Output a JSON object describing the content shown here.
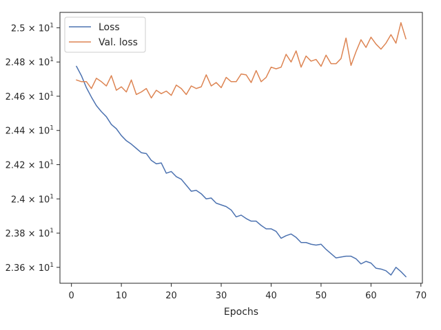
{
  "chart_data": {
    "type": "line",
    "title": "",
    "xlabel": "Epochs",
    "ylabel": "",
    "xlim": [
      -2.3,
      70.3
    ],
    "ylim": [
      23.507,
      25.09
    ],
    "xticks": [
      0,
      10,
      20,
      30,
      40,
      50,
      60,
      70
    ],
    "yticks": [
      {
        "value": 23.6,
        "mantissa": "2.36",
        "exp": "1"
      },
      {
        "value": 23.8,
        "mantissa": "2.38",
        "exp": "1"
      },
      {
        "value": 24.0,
        "mantissa": "2.4",
        "exp": "1"
      },
      {
        "value": 24.2,
        "mantissa": "2.42",
        "exp": "1"
      },
      {
        "value": 24.4,
        "mantissa": "2.44",
        "exp": "1"
      },
      {
        "value": 24.6,
        "mantissa": "2.46",
        "exp": "1"
      },
      {
        "value": 24.8,
        "mantissa": "2.48",
        "exp": "1"
      },
      {
        "value": 25.0,
        "mantissa": "2.5",
        "exp": "1"
      }
    ],
    "grid": false,
    "legend_position": "top-left",
    "series": [
      {
        "name": "Loss",
        "color": "#4c72b0",
        "x": [
          1,
          2,
          3,
          4,
          5,
          6,
          7,
          8,
          9,
          10,
          11,
          12,
          13,
          14,
          15,
          16,
          17,
          18,
          19,
          20,
          21,
          22,
          23,
          24,
          25,
          26,
          27,
          28,
          29,
          30,
          31,
          32,
          33,
          34,
          35,
          36,
          37,
          38,
          39,
          40,
          41,
          42,
          43,
          44,
          45,
          46,
          47,
          48,
          49,
          50,
          51,
          52,
          53,
          54,
          55,
          56,
          57,
          58,
          59,
          60,
          61,
          62,
          63,
          64,
          65,
          66,
          67
        ],
        "values": [
          24.775,
          24.72,
          24.65,
          24.595,
          24.545,
          24.51,
          24.48,
          24.435,
          24.41,
          24.37,
          24.34,
          24.32,
          24.295,
          24.27,
          24.265,
          24.225,
          24.205,
          24.21,
          24.15,
          24.16,
          24.13,
          24.115,
          24.08,
          24.045,
          24.05,
          24.03,
          24.0,
          24.005,
          23.975,
          23.965,
          23.955,
          23.935,
          23.895,
          23.905,
          23.885,
          23.87,
          23.87,
          23.845,
          23.825,
          23.825,
          23.81,
          23.77,
          23.785,
          23.795,
          23.775,
          23.745,
          23.745,
          23.735,
          23.73,
          23.735,
          23.705,
          23.68,
          23.655,
          23.66,
          23.665,
          23.665,
          23.65,
          23.62,
          23.635,
          23.625,
          23.595,
          23.59,
          23.58,
          23.555,
          23.6,
          23.575,
          23.545
        ]
      },
      {
        "name": "Val. loss",
        "color": "#dd8452",
        "x": [
          1,
          2,
          3,
          4,
          5,
          6,
          7,
          8,
          9,
          10,
          11,
          12,
          13,
          14,
          15,
          16,
          17,
          18,
          19,
          20,
          21,
          22,
          23,
          24,
          25,
          26,
          27,
          28,
          29,
          30,
          31,
          32,
          33,
          34,
          35,
          36,
          37,
          38,
          39,
          40,
          41,
          42,
          43,
          44,
          45,
          46,
          47,
          48,
          49,
          50,
          51,
          52,
          53,
          54,
          55,
          56,
          57,
          58,
          59,
          60,
          61,
          62,
          63,
          64,
          65,
          66,
          67
        ],
        "values": [
          24.695,
          24.685,
          24.685,
          24.645,
          24.705,
          24.685,
          24.66,
          24.72,
          24.635,
          24.655,
          24.625,
          24.695,
          24.61,
          24.625,
          24.645,
          24.59,
          24.635,
          24.615,
          24.63,
          24.605,
          24.665,
          24.645,
          24.61,
          24.66,
          24.645,
          24.655,
          24.725,
          24.66,
          24.68,
          24.65,
          24.71,
          24.685,
          24.685,
          24.73,
          24.725,
          24.68,
          24.75,
          24.685,
          24.71,
          24.77,
          24.76,
          24.77,
          24.845,
          24.8,
          24.865,
          24.77,
          24.835,
          24.805,
          24.815,
          24.775,
          24.84,
          24.79,
          24.79,
          24.82,
          24.94,
          24.78,
          24.86,
          24.93,
          24.885,
          24.945,
          24.905,
          24.875,
          24.91,
          24.96,
          24.91,
          25.03,
          24.935
        ]
      }
    ]
  }
}
